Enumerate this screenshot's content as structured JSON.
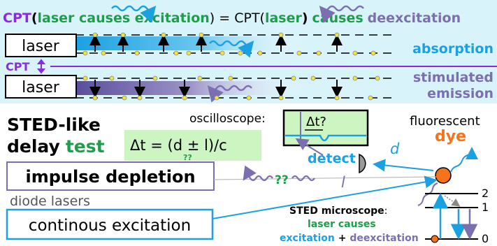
{
  "header": {
    "cpt": "CPT",
    "paren_open": "(",
    "laser_causes_excitation": "laser causes excitation",
    "equals_cpt": ") = CPT(",
    "laser": "laser",
    "paren_close": ")",
    "causes": "causes",
    "deexcitation": "deexcitation"
  },
  "top_panel": {
    "laser_label_1": "laser",
    "laser_label_2": "laser",
    "absorption": "absorption",
    "cpt_arrow_label": "CPT",
    "stimulated": "stimulated",
    "emission": "emission"
  },
  "bottom_panel": {
    "sted_like": "STED-like",
    "delay": "delay",
    "test": "test",
    "oscilloscope": "oscilloscope:",
    "delta_t_q": "Δt?",
    "formula": "Δt = (d ± l)/c",
    "formula_qq": "??",
    "fluorescent": "fluorescent",
    "dye": "dye",
    "detect": "detect",
    "impulse_depletion": "impulse depletion",
    "qq_mid": "??",
    "l_label": "l",
    "d_label": "d",
    "diode_lasers": "diode lasers",
    "continous_excitation": "continous excitation",
    "sted_microscope": "STED microscope",
    "colon": ":",
    "laser_causes": "laser causes",
    "excitation": "excitation",
    "plus": " + ",
    "deexcitation": "deexcitation",
    "level_2": "2",
    "level_1": "1",
    "level_0": "0"
  },
  "colors": {
    "purple": "#8a2be2",
    "green": "#1e9e4a",
    "cyan": "#1ba1e2",
    "violet_gray": "#7b6fb0",
    "orange": "#f4731b",
    "light_blue_bg": "#d9f3fb",
    "light_green_bg": "#ccf5c2",
    "black": "#000000"
  }
}
